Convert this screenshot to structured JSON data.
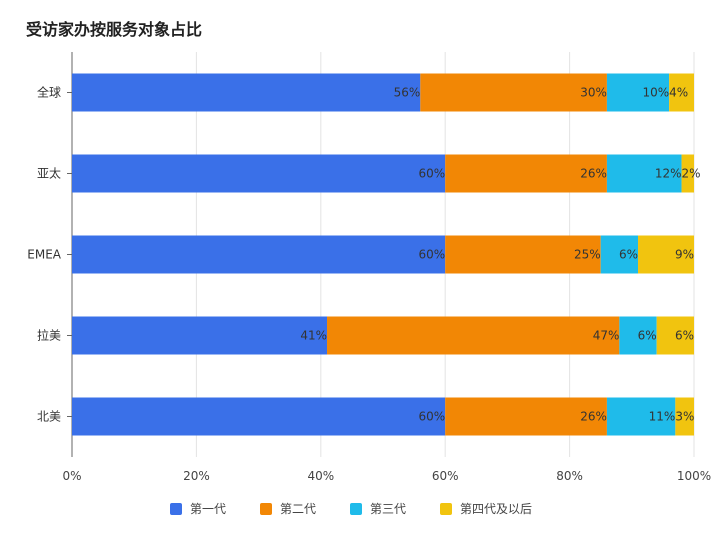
{
  "chart_data": {
    "type": "bar",
    "orientation": "horizontal",
    "stacked": true,
    "title": "受访家办按服务对象占比",
    "categories": [
      "全球",
      "亚太",
      "EMEA",
      "拉美",
      "北美"
    ],
    "series": [
      {
        "name": "第一代",
        "color": "#3a70e8",
        "values": [
          56,
          60,
          60,
          41,
          60
        ],
        "labels": [
          "56%",
          "60%",
          "60%",
          "41%",
          "60%"
        ]
      },
      {
        "name": "第二代",
        "color": "#f28705",
        "values": [
          30,
          26,
          25,
          47,
          26
        ],
        "labels": [
          "30%",
          "26%",
          "25%",
          "47%",
          "26%"
        ]
      },
      {
        "name": "第三代",
        "color": "#1fbbea",
        "values": [
          10,
          12,
          6,
          6,
          11
        ],
        "labels": [
          "10%",
          "12%",
          "6%",
          "6%",
          "11%"
        ]
      },
      {
        "name": "第四代及以后",
        "color": "#f1c40f",
        "values": [
          4,
          2,
          9,
          6,
          3
        ],
        "labels": [
          "4%",
          "2%",
          "9%",
          "6%",
          "3%"
        ]
      }
    ],
    "xlim": [
      0,
      100
    ],
    "x_ticks": [
      "0%",
      "20%",
      "40%",
      "60%",
      "80%",
      "100%"
    ],
    "grid": true,
    "legend_position": "bottom"
  }
}
